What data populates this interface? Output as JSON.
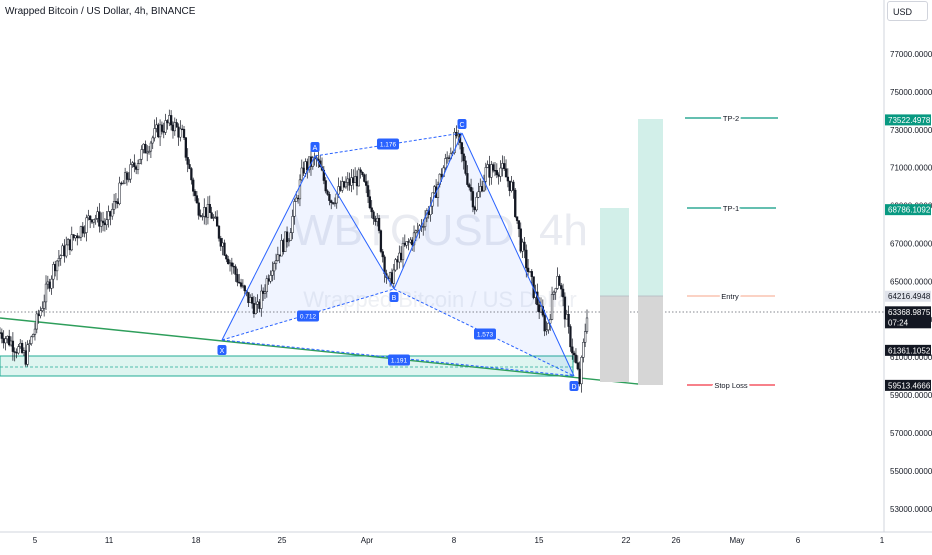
{
  "header": {
    "title": "Wrapped Bitcoin / US Dollar, 4h, BINANCE",
    "currency": "USD"
  },
  "watermark": {
    "symbol": "WBTCUSD, 4h",
    "name": "Wrapped Bitcoin / US Dollar"
  },
  "colors": {
    "up": "#ffffff",
    "down": "#131722",
    "pattern": "#2962ff",
    "trendline": "#22ab94",
    "zone": "#c3ece4",
    "tp": "#089981",
    "stop": "#f23645",
    "entry": "#f7a58a",
    "lastPrice": "#131722"
  },
  "chart_data": {
    "type": "candlestick",
    "title": "Wrapped Bitcoin / US Dollar, 4h, BINANCE",
    "y_axis": {
      "ticks": [
        "53000.0000",
        "55000.0000",
        "57000.0000",
        "59000.0000",
        "61000.0000",
        "63000.0000",
        "65000.0000",
        "67000.0000",
        "69000.0000",
        "71000.0000",
        "73000.0000",
        "75000.0000",
        "77000.0000"
      ],
      "range": [
        52000,
        79800
      ]
    },
    "x_axis": {
      "ticks": [
        "5",
        "11",
        "18",
        "25",
        "Apr",
        "8",
        "15",
        "22",
        "26",
        "May",
        "6",
        "1"
      ]
    },
    "price_labels": [
      {
        "name": "TP-2",
        "value": "73522.4978"
      },
      {
        "name": "TP-1",
        "value": "68786.1092"
      },
      {
        "name": "Entry",
        "value": "64216.4948"
      },
      {
        "name": "Last",
        "value": "63368.9875",
        "sub": "07:24"
      },
      {
        "name": "Level",
        "value": "61361.1052"
      },
      {
        "name": "Stop Loss",
        "value": "59513.4666"
      }
    ],
    "position_labels": [
      "TP-2",
      "TP-1",
      "Entry",
      "Stop Loss"
    ],
    "harmonic_pattern": {
      "points": [
        {
          "label": "X",
          "date": "Mar 20",
          "price": 61700
        },
        {
          "label": "A",
          "date": "Mar 28",
          "price": 71400
        },
        {
          "label": "B",
          "date": "Apr 3",
          "price": 64800
        },
        {
          "label": "C",
          "date": "Apr 8",
          "price": 72700
        },
        {
          "label": "D",
          "date": "Apr 17",
          "price": 59700
        }
      ],
      "ratios": [
        "0.712",
        "1.176",
        "1.573",
        "1.191"
      ]
    },
    "candles": {
      "count": 320,
      "start_price": 62300,
      "anchors": [
        [
          0,
          62300
        ],
        [
          6,
          61800
        ],
        [
          14,
          61000
        ],
        [
          22,
          63500
        ],
        [
          30,
          66000
        ],
        [
          40,
          67300
        ],
        [
          50,
          68500
        ],
        [
          58,
          68000
        ],
        [
          66,
          70000
        ],
        [
          76,
          71600
        ],
        [
          86,
          73000
        ],
        [
          93,
          73400
        ],
        [
          99,
          72700
        ],
        [
          107,
          69000
        ],
        [
          115,
          68500
        ],
        [
          123,
          66500
        ],
        [
          133,
          64300
        ],
        [
          140,
          63500
        ],
        [
          148,
          66000
        ],
        [
          157,
          67500
        ],
        [
          165,
          71000
        ],
        [
          172,
          71400
        ],
        [
          180,
          69300
        ],
        [
          188,
          70100
        ],
        [
          196,
          70500
        ],
        [
          204,
          68500
        ],
        [
          211,
          64800
        ],
        [
          218,
          66500
        ],
        [
          226,
          67500
        ],
        [
          234,
          69000
        ],
        [
          241,
          71000
        ],
        [
          248,
          72700
        ],
        [
          252,
          71200
        ],
        [
          258,
          69000
        ],
        [
          264,
          70800
        ],
        [
          272,
          71000
        ],
        [
          278,
          70000
        ],
        [
          283,
          67000
        ],
        [
          290,
          64500
        ],
        [
          297,
          62400
        ],
        [
          303,
          65500
        ],
        [
          309,
          62300
        ],
        [
          315,
          59700
        ],
        [
          319,
          63400
        ]
      ]
    }
  }
}
